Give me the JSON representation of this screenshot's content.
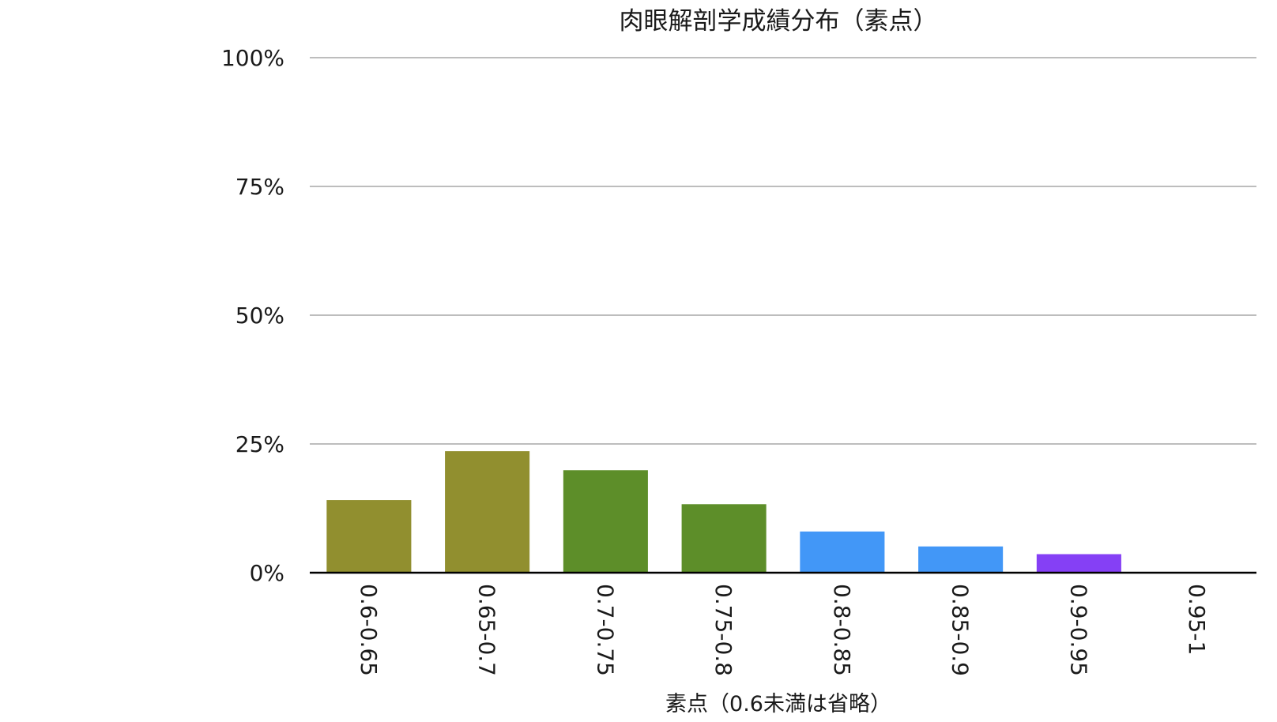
{
  "chart_data": {
    "type": "bar",
    "title": "肉眼解剖学成績分布（素点）",
    "xlabel": "素点（0.6未満は省略）",
    "ylabel": "",
    "categories": [
      "0.6-0.65",
      "0.65-0.7",
      "0.7-0.75",
      "0.75-0.8",
      "0.8-0.85",
      "0.85-0.9",
      "0.9-0.95",
      "0.95-1"
    ],
    "values": [
      14.1,
      23.6,
      19.9,
      13.3,
      8.0,
      5.1,
      3.6,
      0
    ],
    "bar_colors": [
      "#918f2f",
      "#918f2f",
      "#5d8e29",
      "#5d8e29",
      "#4297f7",
      "#4297f7",
      "#8540f5",
      "#8540f5"
    ],
    "ylim": [
      0,
      100
    ],
    "yticks": [
      "0%",
      "25%",
      "50%",
      "75%",
      "100%"
    ],
    "grid": true,
    "legend": "none",
    "colors": {
      "grid": "#bdbdbd",
      "axis": "#000000"
    }
  }
}
